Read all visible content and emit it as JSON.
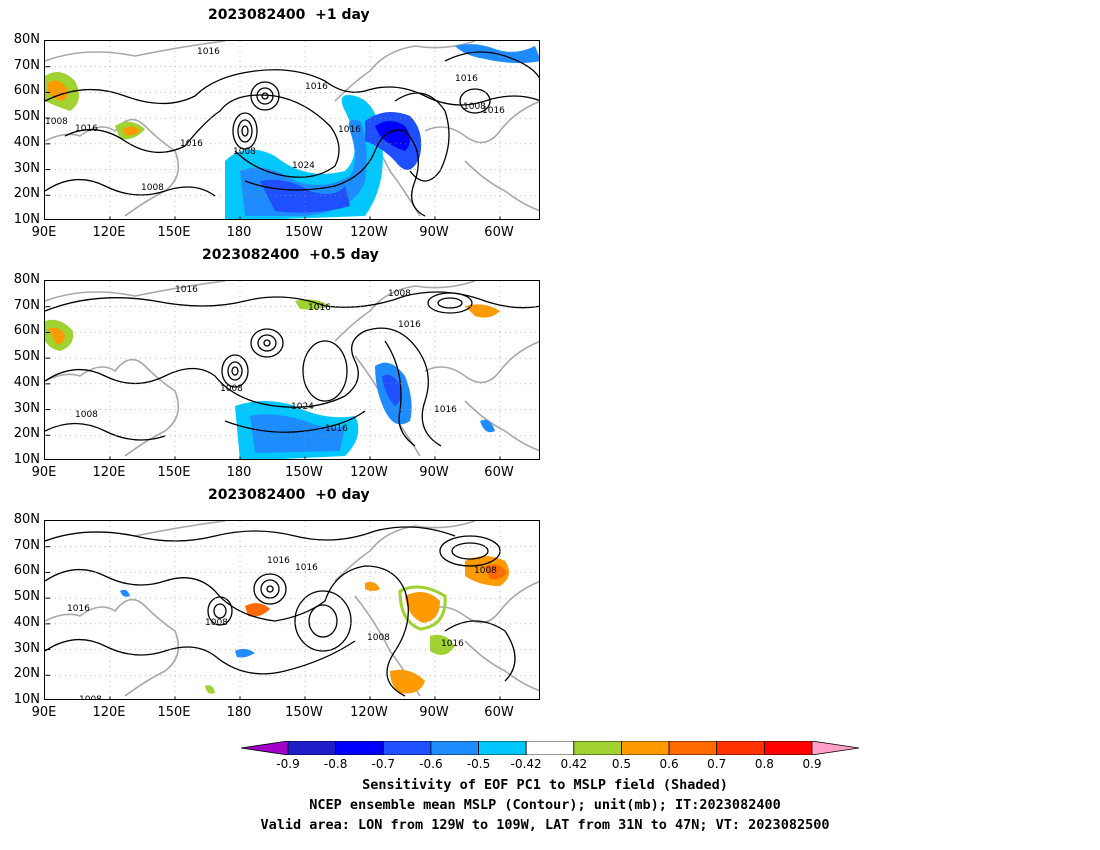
{
  "panels": [
    {
      "title": "2023082400  +1 day",
      "isobars": [
        {
          "label": "1016"
        },
        {
          "label": "1016"
        },
        {
          "label": "1016"
        },
        {
          "label": "1016"
        },
        {
          "label": "1008"
        },
        {
          "label": "1008"
        },
        {
          "label": "1016"
        },
        {
          "label": "1024"
        },
        {
          "label": "1008"
        },
        {
          "label": "1008"
        },
        {
          "label": "1016"
        },
        {
          "label": "1016"
        }
      ]
    },
    {
      "title": "2023082400  +0.5 day",
      "isobars": [
        {
          "label": "1016"
        },
        {
          "label": "1016"
        },
        {
          "label": "1008"
        },
        {
          "label": "1016"
        },
        {
          "label": "1008"
        },
        {
          "label": "1024"
        },
        {
          "label": "1016"
        },
        {
          "label": "1008"
        },
        {
          "label": "1016"
        }
      ]
    },
    {
      "title": "2023082400  +0 day",
      "isobars": [
        {
          "label": "1016"
        },
        {
          "label": "1016"
        },
        {
          "label": "1008"
        },
        {
          "label": "1016"
        },
        {
          "label": "1008"
        },
        {
          "label": "1008"
        },
        {
          "label": "1016"
        },
        {
          "label": "1008"
        }
      ]
    }
  ],
  "lat_labels": [
    "80N",
    "70N",
    "60N",
    "50N",
    "40N",
    "30N",
    "20N",
    "10N"
  ],
  "lon_labels": [
    "90E",
    "120E",
    "150E",
    "180",
    "150W",
    "120W",
    "90W",
    "60W"
  ],
  "colorbar": {
    "colors": [
      "#a000c8",
      "#1e1ec8",
      "#0000ff",
      "#1e50ff",
      "#1e8cff",
      "#00c8ff",
      "#ffffff",
      "#a0d232",
      "#ff9b00",
      "#ff6a00",
      "#ff3200",
      "#ff0000",
      "#ffa0c8"
    ],
    "labels": [
      "-0.9",
      "-0.8",
      "-0.7",
      "-0.6",
      "-0.5",
      "-0.42",
      "0.42",
      "0.5",
      "0.6",
      "0.7",
      "0.8",
      "0.9"
    ]
  },
  "caption": {
    "line1": "Sensitivity of EOF PC1 to MSLP field (Shaded)",
    "line2": "NCEP ensemble mean MSLP (Contour); unit(mb); IT:2023082400",
    "line3": "Valid area: LON from 129W to 109W, LAT from 31N to 47N; VT: 2023082500"
  }
}
